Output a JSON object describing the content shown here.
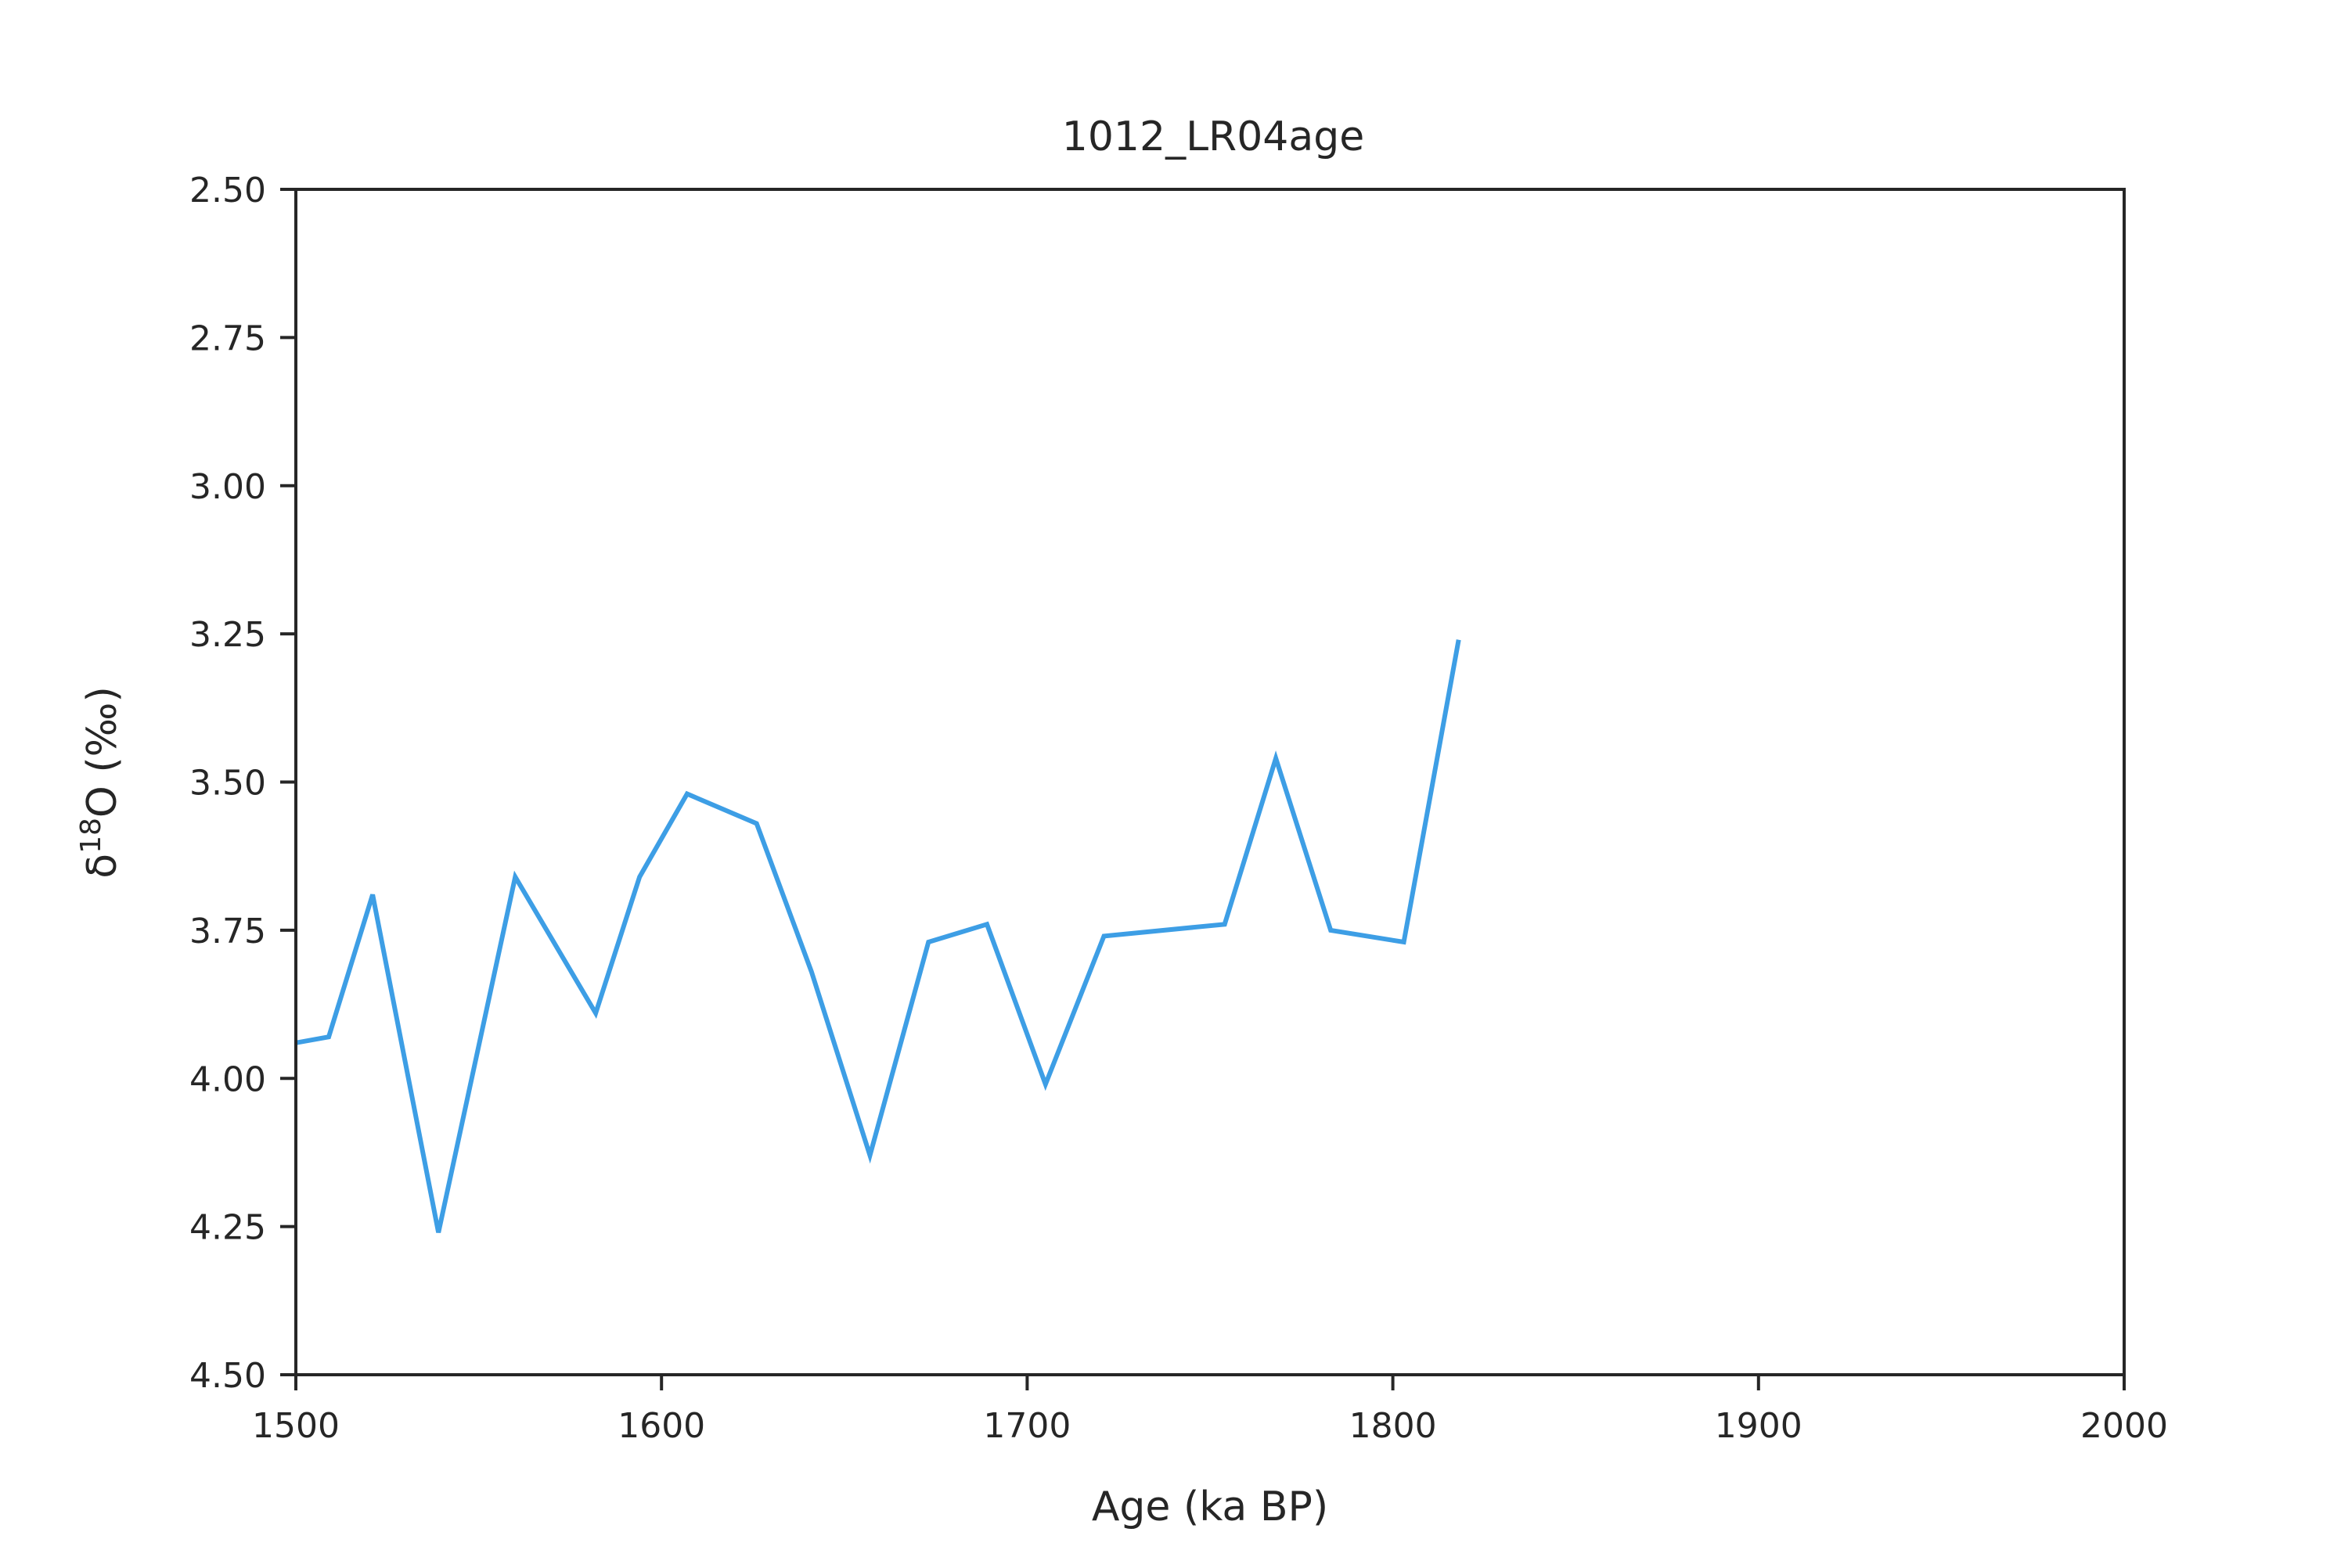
{
  "chart_data": {
    "type": "line",
    "title": "1012_LR04age",
    "xlabel": "Age (ka BP)",
    "ylabel": {
      "prefix": "δ",
      "superscript": "18",
      "suffix": "O (‰)"
    },
    "xlim": [
      1500,
      2000
    ],
    "ylim": [
      2.5,
      4.5
    ],
    "y_inverted": true,
    "x_ticks": [
      1500,
      1600,
      1700,
      1800,
      1900,
      2000
    ],
    "y_ticks": [
      "2.50",
      "2.75",
      "3.00",
      "3.25",
      "3.50",
      "3.75",
      "4.00",
      "4.25",
      "4.50"
    ],
    "grid": false,
    "line_color": "#3d9ee5",
    "series": [
      {
        "x": [
          1500,
          1509,
          1521,
          1539,
          1560,
          1582,
          1594,
          1607,
          1626,
          1641,
          1657,
          1673,
          1689,
          1705,
          1721,
          1754,
          1768,
          1783,
          1803,
          1818
        ],
        "y": [
          3.94,
          3.93,
          3.69,
          4.26,
          3.66,
          3.89,
          3.66,
          3.52,
          3.57,
          3.82,
          4.13,
          3.77,
          3.74,
          4.01,
          3.76,
          3.74,
          3.46,
          3.75,
          3.77,
          3.26
        ]
      }
    ]
  }
}
